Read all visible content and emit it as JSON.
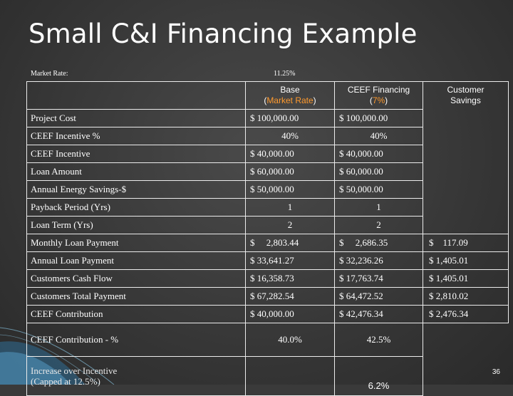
{
  "slide": {
    "title": "Small C&I Financing Example",
    "market_rate_label": "Market Rate:",
    "market_rate_value": "11.25%",
    "page_number": "36"
  },
  "headers": {
    "base_line1": "Base",
    "base_line2": "Market Rate",
    "ceef_line1": "CEEF Financing",
    "ceef_line2": "7%",
    "savings_line1": "Customer",
    "savings_line2": "Savings"
  },
  "rows": [
    {
      "label": "Project Cost",
      "base": "$ 100,000.00",
      "ceef": "$ 100,000.00",
      "savings": ""
    },
    {
      "label": "CEEF Incentive %",
      "base": "40%",
      "ceef": "40%",
      "savings": ""
    },
    {
      "label": "CEEF Incentive",
      "base": "$  40,000.00",
      "ceef": "$  40,000.00",
      "savings": ""
    },
    {
      "label": "Loan Amount",
      "base": "$  60,000.00",
      "ceef": "$  60,000.00",
      "savings": ""
    },
    {
      "label": "Annual Energy Savings-$",
      "base": "$  50,000.00",
      "ceef": "$  50,000.00",
      "savings": ""
    },
    {
      "label": "Payback Period (Yrs)",
      "base": "1",
      "ceef": "1",
      "savings": ""
    },
    {
      "label": "Loan Term (Yrs)",
      "base": "2",
      "ceef": "2",
      "savings": ""
    },
    {
      "label": "Monthly Loan Payment",
      "base": "$     2,803.44",
      "ceef": "$     2,686.35",
      "savings": "$    117.09"
    },
    {
      "label": "Annual Loan Payment",
      "base": "$  33,641.27",
      "ceef": "$  32,236.26",
      "savings": "$ 1,405.01"
    },
    {
      "label": "Customers Cash Flow",
      "base": "$  16,358.73",
      "ceef": "$  17,763.74",
      "savings": "$ 1,405.01"
    },
    {
      "label": "Customers Total Payment",
      "base": "$  67,282.54",
      "ceef": "$  64,472.52",
      "savings": "$ 2,810.02"
    },
    {
      "label": "CEEF Contribution",
      "base": "$  40,000.00",
      "ceef": "$  42,476.34",
      "savings": "$ 2,476.34"
    }
  ],
  "contribution_pct": {
    "label": "CEEF Contribution - %",
    "base": "40.0%",
    "ceef": "42.5%"
  },
  "increase": {
    "label_line1": "Increase over Incentive",
    "label_line2": "(Capped at 12.5%)",
    "value": "6.2%"
  },
  "colors": {
    "background": "#3a3a3a",
    "accent_orange": "#ff9a2e",
    "decoration_blue": "#5aa9d6"
  }
}
